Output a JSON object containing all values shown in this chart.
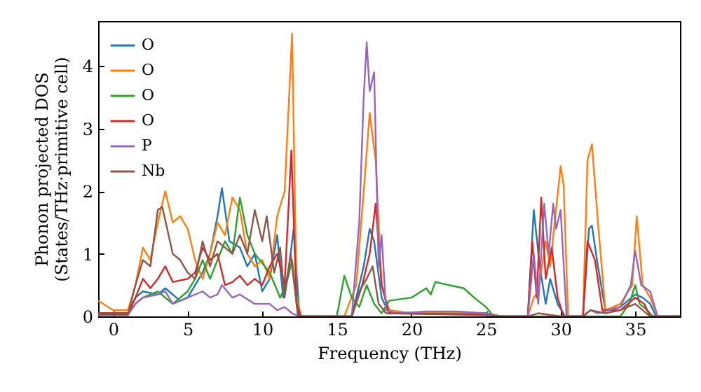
{
  "chart_data": {
    "type": "line",
    "xlabel": "Frequency (THz)",
    "ylabel": "Phonon projected DOS\n(States/THz·primitive cell)",
    "xlim": [
      -1,
      38
    ],
    "ylim": [
      0,
      4.72
    ],
    "xticks": [
      0,
      5,
      10,
      15,
      20,
      25,
      30,
      35
    ],
    "yticks": [
      0,
      1,
      2,
      3,
      4
    ],
    "grid": false,
    "legend": "top left",
    "series": [
      {
        "name": "O",
        "color": "#1f77b4",
        "x": [
          -1,
          1,
          1.5,
          2,
          3,
          3.5,
          4.5,
          5,
          5.5,
          6,
          6.5,
          7,
          7.3,
          7.8,
          8.5,
          9,
          9.5,
          10,
          10.5,
          11,
          11.4,
          11.8,
          12.1,
          12.5,
          16,
          16.8,
          17.2,
          17.5,
          18,
          18.5,
          25,
          26,
          27.8,
          28.2,
          28.6,
          29,
          29.3,
          29.8,
          30.3,
          31.5,
          31.9,
          32.1,
          32.5,
          33,
          34,
          35,
          35.5,
          36,
          36.4,
          38
        ],
        "values": [
          0.05,
          0.05,
          0.3,
          0.4,
          0.35,
          0.45,
          0.25,
          0.3,
          0.5,
          0.7,
          1.0,
          1.6,
          2.05,
          1.2,
          1.1,
          0.8,
          1.0,
          0.4,
          0.6,
          1.3,
          0.3,
          0.8,
          1.4,
          0,
          0,
          0.8,
          1.4,
          1.2,
          0.3,
          0.05,
          0.05,
          0,
          0,
          1.7,
          0.8,
          0.2,
          0.6,
          0.2,
          0,
          0,
          1.4,
          1.45,
          0.8,
          0.1,
          0.15,
          0.35,
          0.3,
          0.2,
          0,
          0
        ]
      },
      {
        "name": "O",
        "color": "#ff7f0e",
        "x": [
          -1,
          0,
          1,
          1.5,
          2,
          2.5,
          3,
          3.5,
          4,
          4.5,
          5,
          5.5,
          6,
          6.5,
          7,
          7.5,
          8,
          8.5,
          9,
          9.5,
          10,
          10.5,
          11,
          11.5,
          12,
          12.3,
          12.6,
          15.5,
          16.3,
          16.8,
          17.2,
          17.6,
          18,
          18.5,
          20,
          25,
          26,
          27.8,
          28.2,
          28.5,
          29,
          29.3,
          29.6,
          30,
          30.2,
          30.5,
          31.5,
          31.8,
          32.1,
          32.5,
          33,
          34,
          34.8,
          35.1,
          35.5,
          36,
          36.5,
          38
        ],
        "values": [
          0.25,
          0.1,
          0.1,
          0.5,
          1.1,
          0.9,
          1.5,
          2.0,
          1.5,
          1.6,
          1.4,
          0.9,
          0.6,
          1.0,
          1.5,
          1.3,
          1.9,
          1.7,
          1.0,
          0.8,
          0.9,
          0.6,
          1.6,
          2.0,
          4.52,
          0.3,
          0,
          0,
          0.5,
          2.0,
          3.25,
          2.5,
          0.5,
          0.1,
          0.05,
          0.05,
          0,
          0,
          0.3,
          0.4,
          1.2,
          0.8,
          1.5,
          2.4,
          2.1,
          0,
          0,
          2.5,
          2.75,
          1.5,
          0.1,
          0.2,
          0.5,
          1.6,
          0.5,
          0.3,
          0,
          0
        ]
      },
      {
        "name": "O",
        "color": "#2ca02c",
        "x": [
          -1,
          1,
          1.5,
          2,
          3,
          4,
          5,
          5.5,
          6,
          6.5,
          7.5,
          8,
          8.5,
          9,
          9.5,
          10.5,
          11.2,
          11.6,
          12,
          12.4,
          15,
          15.5,
          16,
          16.5,
          17,
          17.5,
          18,
          18.5,
          20,
          21,
          21.3,
          21.6,
          22.5,
          23.5,
          24.2,
          25,
          25.5,
          34,
          34.6,
          35,
          35.3,
          35.8,
          36.2,
          38
        ],
        "values": [
          0.05,
          0.05,
          0.2,
          0.3,
          0.4,
          0.2,
          0.4,
          0.6,
          0.9,
          0.6,
          1.2,
          1.0,
          1.9,
          1.3,
          1.0,
          0.7,
          0.3,
          0.5,
          0.9,
          0,
          0,
          0.65,
          0.3,
          0.15,
          0.5,
          0.2,
          0.05,
          0.25,
          0.3,
          0.45,
          0.35,
          0.55,
          0.5,
          0.45,
          0.3,
          0.15,
          0,
          0,
          0.2,
          0.5,
          0.2,
          0.1,
          0,
          0
        ]
      },
      {
        "name": "O",
        "color": "#d62728",
        "x": [
          -1,
          1,
          1.5,
          2,
          2.5,
          3,
          3.5,
          4,
          5,
          5.5,
          6,
          6.5,
          7,
          7.5,
          8,
          8.5,
          9,
          9.5,
          10,
          10.5,
          11,
          11.5,
          11.95,
          12.3,
          12.6,
          16,
          16.7,
          17.2,
          17.6,
          18,
          18.5,
          25,
          26,
          27.8,
          28.1,
          28.4,
          28.7,
          29,
          29.4,
          29.8,
          30.2,
          31.5,
          31.8,
          32.3,
          32.8,
          34,
          35,
          35.6,
          36,
          38
        ],
        "values": [
          0.05,
          0.05,
          0.3,
          0.6,
          0.45,
          0.6,
          0.8,
          0.55,
          0.6,
          0.7,
          1.1,
          0.9,
          1.0,
          0.5,
          0.55,
          0.65,
          0.5,
          0.6,
          0.5,
          0.8,
          1.0,
          0.5,
          2.65,
          0.2,
          0,
          0,
          0.5,
          1.0,
          1.8,
          0.5,
          0.05,
          0.03,
          0,
          0,
          1.2,
          0.3,
          1.9,
          0.6,
          1.1,
          0.3,
          0,
          0,
          1.2,
          0.9,
          0.1,
          0.1,
          0.3,
          0.2,
          0,
          0
        ]
      },
      {
        "name": "P",
        "color": "#9467bd",
        "x": [
          -1,
          1,
          1.5,
          2,
          3,
          3.5,
          4,
          5,
          6,
          6.5,
          7,
          7.3,
          8,
          8.5,
          9.5,
          10.5,
          11,
          11.5,
          12,
          12.5,
          16,
          16.5,
          16.8,
          17.0,
          17.2,
          17.5,
          17.8,
          18.0,
          18.3,
          19,
          21,
          23,
          25,
          26,
          27.8,
          28.2,
          28.5,
          28.9,
          29.2,
          29.5,
          29.7,
          30,
          30.4,
          31.5,
          32,
          32.5,
          34,
          34.7,
          35.0,
          35.4,
          36,
          36.5,
          38
        ],
        "values": [
          0.02,
          0.02,
          0.2,
          0.3,
          0.35,
          0.4,
          0.2,
          0.3,
          0.4,
          0.3,
          0.35,
          0.5,
          0.3,
          0.35,
          0.2,
          0.2,
          0.1,
          0.15,
          0.05,
          0,
          0,
          1.5,
          3.5,
          4.38,
          3.6,
          3.9,
          0.8,
          1.3,
          0.1,
          0.05,
          0.08,
          0.08,
          0.05,
          0,
          0,
          1.0,
          0.2,
          1.8,
          1.0,
          1.8,
          1.4,
          1.7,
          0,
          0,
          0.1,
          0.05,
          0.15,
          0.5,
          1.05,
          0.5,
          0.4,
          0,
          0
        ]
      },
      {
        "name": "Nb",
        "color": "#8c564b",
        "x": [
          -1,
          1,
          1.5,
          2,
          2.5,
          3,
          3.3,
          4,
          4.5,
          5,
          5.5,
          6,
          6.5,
          7,
          7.5,
          8,
          8.5,
          9,
          9.5,
          10,
          10.3,
          10.8,
          11.2,
          11.5,
          11.9,
          12.4,
          16,
          16.5,
          17,
          17.4,
          17.8,
          18.3,
          25,
          26,
          27.8,
          28.5,
          30,
          31.5,
          32,
          33,
          34,
          35,
          35.5,
          36,
          38
        ],
        "values": [
          0.03,
          0.03,
          0.5,
          0.9,
          0.8,
          1.7,
          1.75,
          1.0,
          0.9,
          0.7,
          0.6,
          1.2,
          0.8,
          1.2,
          1.1,
          1.0,
          1.3,
          1.0,
          1.7,
          1.2,
          1.6,
          0.7,
          1.1,
          0.3,
          1.0,
          0,
          0,
          0.4,
          0.6,
          0.8,
          0.2,
          0.05,
          0.02,
          0,
          0,
          0.05,
          0,
          0,
          0.1,
          0.05,
          0.1,
          0.2,
          0.1,
          0,
          0
        ]
      }
    ]
  }
}
